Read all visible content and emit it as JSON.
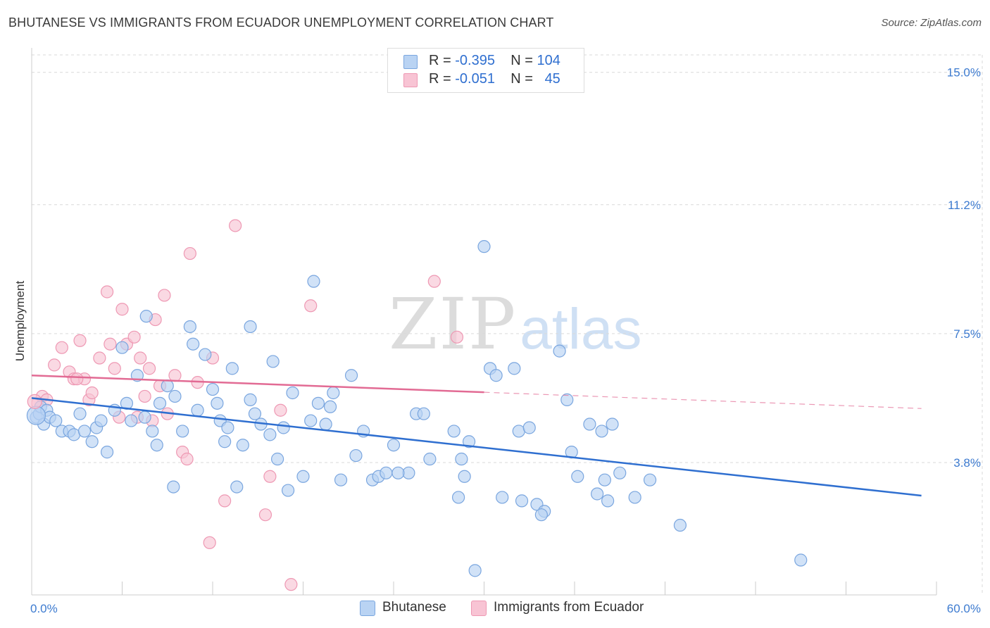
{
  "header": {
    "title": "BHUTANESE VS IMMIGRANTS FROM ECUADOR UNEMPLOYMENT CORRELATION CHART",
    "source": "Source: ZipAtlas.com"
  },
  "watermark": {
    "zip": "ZIP",
    "atlas": "atlas"
  },
  "legend": {
    "rows": [
      {
        "r_label": "R =",
        "r_value": "-0.395",
        "n_label": "N =",
        "n_value": "104"
      },
      {
        "r_label": "R =",
        "r_value": "-0.051",
        "n_label": "N =",
        "n_value": "45"
      }
    ]
  },
  "colors": {
    "bhutanese_fill": "#b9d3f3",
    "bhutanese_stroke": "#7aa6df",
    "bhutanese_line": "#2f6fd0",
    "ecuador_fill": "#f8c4d4",
    "ecuador_stroke": "#ee98b3",
    "ecuador_line": "#e26b94",
    "grid": "#d9d9d9",
    "axis_text": "#3d7bd0"
  },
  "chart_data": {
    "type": "scatter",
    "title": "BHUTANESE VS IMMIGRANTS FROM ECUADOR UNEMPLOYMENT CORRELATION CHART",
    "xlabel": "",
    "ylabel": "Unemployment",
    "xlim": [
      0,
      60
    ],
    "ylim": [
      0,
      15.5
    ],
    "x_tick_labels": [
      "0.0%",
      "60.0%"
    ],
    "y_ticks": [
      3.8,
      7.5,
      11.2,
      15.0
    ],
    "y_tick_labels": [
      "3.8%",
      "7.5%",
      "11.2%",
      "15.0%"
    ],
    "grid": true,
    "legend_position": "top-center",
    "series": [
      {
        "name": "Bhutanese",
        "r": -0.395,
        "n": 104,
        "trend": {
          "x": [
            0,
            59
          ],
          "y": [
            5.65,
            2.85
          ]
        },
        "points": [
          [
            0.3,
            5.1
          ],
          [
            0.5,
            5.2
          ],
          [
            0.6,
            5.4
          ],
          [
            0.8,
            4.9
          ],
          [
            1.0,
            5.3
          ],
          [
            1.2,
            5.1
          ],
          [
            1.6,
            5.0
          ],
          [
            2.0,
            4.7
          ],
          [
            2.5,
            4.7
          ],
          [
            2.8,
            4.6
          ],
          [
            3.2,
            5.2
          ],
          [
            3.5,
            4.7
          ],
          [
            4.0,
            4.4
          ],
          [
            4.3,
            4.8
          ],
          [
            4.6,
            5.0
          ],
          [
            5.0,
            4.1
          ],
          [
            5.5,
            5.3
          ],
          [
            6.0,
            7.1
          ],
          [
            6.3,
            5.5
          ],
          [
            6.6,
            5.0
          ],
          [
            7.0,
            6.3
          ],
          [
            7.5,
            5.1
          ],
          [
            8.0,
            4.7
          ],
          [
            8.3,
            4.3
          ],
          [
            7.6,
            8.0
          ],
          [
            8.5,
            5.5
          ],
          [
            9.0,
            6.0
          ],
          [
            9.5,
            5.7
          ],
          [
            9.4,
            3.1
          ],
          [
            10.0,
            4.7
          ],
          [
            10.5,
            7.7
          ],
          [
            10.7,
            7.2
          ],
          [
            11.0,
            5.3
          ],
          [
            11.5,
            6.9
          ],
          [
            12.0,
            5.9
          ],
          [
            12.3,
            5.5
          ],
          [
            12.5,
            5.0
          ],
          [
            12.8,
            4.4
          ],
          [
            13.0,
            4.8
          ],
          [
            13.3,
            6.5
          ],
          [
            13.6,
            3.1
          ],
          [
            14.0,
            4.3
          ],
          [
            14.5,
            5.6
          ],
          [
            14.8,
            5.2
          ],
          [
            14.5,
            7.7
          ],
          [
            15.2,
            4.9
          ],
          [
            15.8,
            4.6
          ],
          [
            16.0,
            6.7
          ],
          [
            16.3,
            3.9
          ],
          [
            16.7,
            4.8
          ],
          [
            17.0,
            3.0
          ],
          [
            17.3,
            5.8
          ],
          [
            18.0,
            3.4
          ],
          [
            18.5,
            5.0
          ],
          [
            18.7,
            9.0
          ],
          [
            19.0,
            5.5
          ],
          [
            19.5,
            4.9
          ],
          [
            19.8,
            5.4
          ],
          [
            20.0,
            5.8
          ],
          [
            20.5,
            3.3
          ],
          [
            21.2,
            6.3
          ],
          [
            21.5,
            4.0
          ],
          [
            22.0,
            4.7
          ],
          [
            22.6,
            3.3
          ],
          [
            23.0,
            3.4
          ],
          [
            24.0,
            4.3
          ],
          [
            23.5,
            3.5
          ],
          [
            25.0,
            3.5
          ],
          [
            24.3,
            3.5
          ],
          [
            25.5,
            5.2
          ],
          [
            26.0,
            5.2
          ],
          [
            26.4,
            3.9
          ],
          [
            28.0,
            4.7
          ],
          [
            28.7,
            3.4
          ],
          [
            28.3,
            2.8
          ],
          [
            30.0,
            10.0
          ],
          [
            29.0,
            4.4
          ],
          [
            29.4,
            0.7
          ],
          [
            30.4,
            6.5
          ],
          [
            30.8,
            6.3
          ],
          [
            31.2,
            2.8
          ],
          [
            32.0,
            6.5
          ],
          [
            32.3,
            4.7
          ],
          [
            32.5,
            2.7
          ],
          [
            33.0,
            4.8
          ],
          [
            33.5,
            2.6
          ],
          [
            34.0,
            2.4
          ],
          [
            33.8,
            2.3
          ],
          [
            35.0,
            7.0
          ],
          [
            35.5,
            5.6
          ],
          [
            35.8,
            4.1
          ],
          [
            36.2,
            3.4
          ],
          [
            37.0,
            4.9
          ],
          [
            37.5,
            2.9
          ],
          [
            37.8,
            4.7
          ],
          [
            38.2,
            2.7
          ],
          [
            38.5,
            4.9
          ],
          [
            38.0,
            3.3
          ],
          [
            39.0,
            3.5
          ],
          [
            40.0,
            2.8
          ],
          [
            41.0,
            3.3
          ],
          [
            43.0,
            2.0
          ],
          [
            51.0,
            1.0
          ],
          [
            28.5,
            3.9
          ]
        ]
      },
      {
        "name": "Immigrants from Ecuador",
        "r": -0.051,
        "n": 45,
        "trend": {
          "x": [
            0,
            59
          ],
          "y": [
            6.3,
            5.35
          ]
        },
        "points": [
          [
            0.4,
            5.5
          ],
          [
            0.7,
            5.7
          ],
          [
            1.0,
            5.6
          ],
          [
            1.5,
            6.6
          ],
          [
            2.0,
            7.1
          ],
          [
            2.5,
            6.4
          ],
          [
            2.8,
            6.2
          ],
          [
            3.2,
            7.3
          ],
          [
            3.5,
            6.2
          ],
          [
            3.8,
            5.6
          ],
          [
            4.0,
            5.8
          ],
          [
            4.5,
            6.8
          ],
          [
            5.0,
            8.7
          ],
          [
            5.2,
            7.2
          ],
          [
            5.5,
            6.5
          ],
          [
            5.8,
            5.1
          ],
          [
            6.0,
            8.2
          ],
          [
            6.3,
            7.2
          ],
          [
            6.8,
            7.4
          ],
          [
            7.0,
            5.1
          ],
          [
            7.2,
            6.8
          ],
          [
            7.5,
            5.7
          ],
          [
            7.8,
            6.5
          ],
          [
            8.2,
            7.9
          ],
          [
            8.5,
            6.0
          ],
          [
            8.8,
            8.6
          ],
          [
            9.0,
            5.2
          ],
          [
            9.5,
            6.3
          ],
          [
            10.0,
            4.1
          ],
          [
            10.3,
            3.9
          ],
          [
            10.5,
            9.8
          ],
          [
            11.0,
            6.1
          ],
          [
            11.8,
            1.5
          ],
          [
            12.0,
            6.8
          ],
          [
            12.8,
            2.7
          ],
          [
            13.5,
            10.6
          ],
          [
            15.5,
            2.3
          ],
          [
            15.8,
            3.4
          ],
          [
            16.5,
            5.3
          ],
          [
            17.2,
            0.3
          ],
          [
            18.5,
            8.3
          ],
          [
            26.7,
            9.0
          ],
          [
            28.2,
            7.4
          ],
          [
            8.0,
            5.0
          ],
          [
            3.0,
            6.2
          ]
        ]
      }
    ]
  }
}
